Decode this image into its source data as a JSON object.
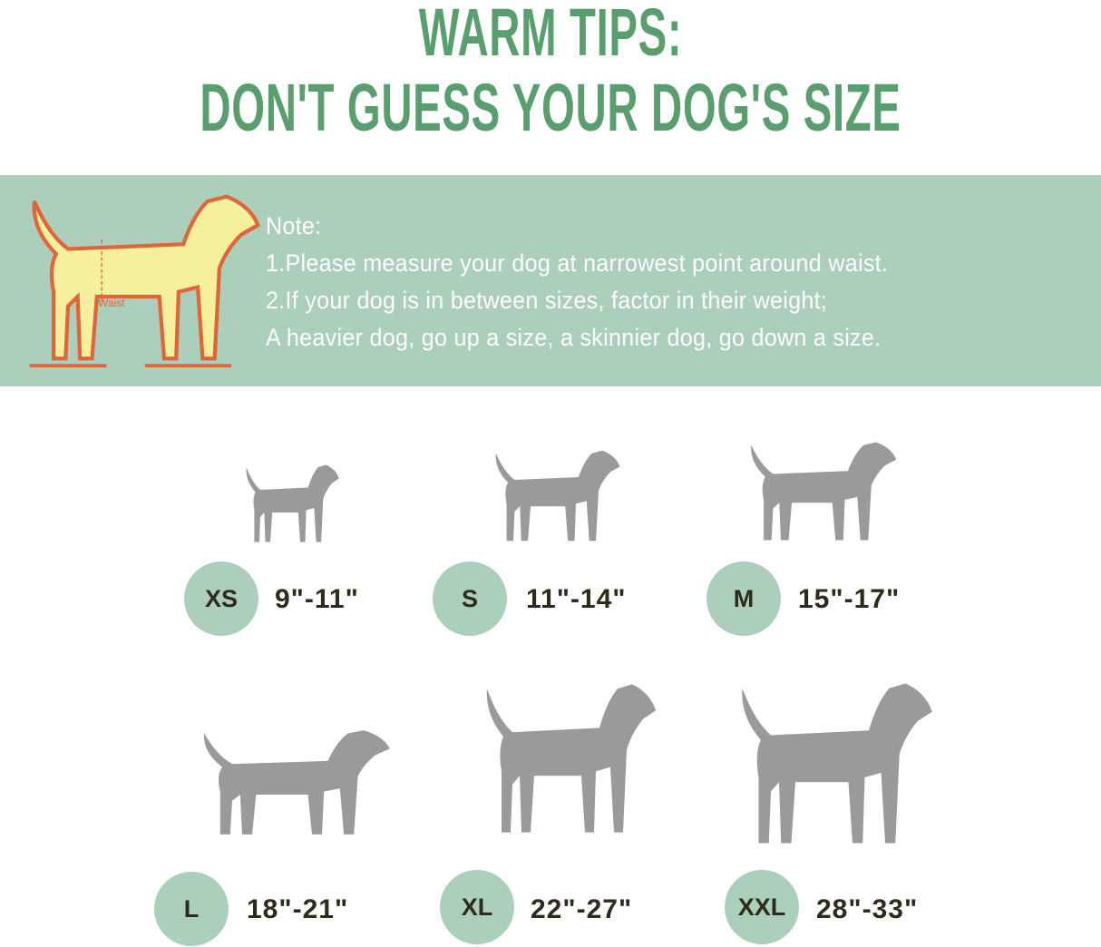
{
  "header": {
    "line1": "WARM TIPS:",
    "line2": "DON'T GUESS YOUR DOG'S SIZE",
    "color": "#5a9e6f"
  },
  "note_banner": {
    "background": "#abcfbb",
    "illustration_label": "Waist",
    "heading": "Note:",
    "lines": [
      "1.Please measure your dog at narrowest point around  waist.",
      "2.If your dog is in between sizes, factor in their weight;",
      "A heavier dog, go up a size, a skinnier dog, go down a  size."
    ]
  },
  "sizes": [
    {
      "label": "XS",
      "range": "9\"-11\""
    },
    {
      "label": "S",
      "range": "11\"-14\""
    },
    {
      "label": "M",
      "range": "15\"-17\""
    },
    {
      "label": "L",
      "range": "18\"-21\""
    },
    {
      "label": "XL",
      "range": "22\"-27\""
    },
    {
      "label": "XXL",
      "range": "28\"-33\""
    }
  ],
  "colors": {
    "silhouette": "#9a9a9a",
    "badge": "#abcfbb",
    "text": "#2e2a1c"
  }
}
